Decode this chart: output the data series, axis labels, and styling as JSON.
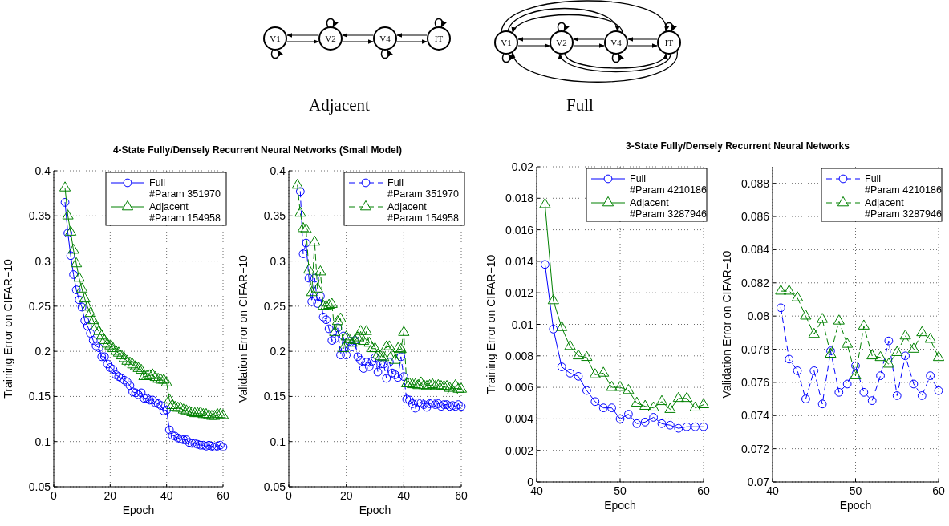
{
  "chart_data": [
    {
      "type": "other",
      "annotations": [
        "V1",
        "V2",
        "V4",
        "IT",
        "Adjacent",
        "V1",
        "V2",
        "V4",
        "IT",
        "Full"
      ]
    },
    {
      "type": "line",
      "title": "4-State Fully/Densely Recurrent Neural Networks (Small Model)",
      "xlabel": "Epoch",
      "ylabel": "Training Error on CIFAR−10",
      "x": [
        4,
        5,
        6,
        7,
        8,
        9,
        10,
        11,
        12,
        13,
        14,
        15,
        16,
        17,
        18,
        19,
        20,
        21,
        22,
        23,
        24,
        25,
        26,
        27,
        28,
        29,
        30,
        31,
        32,
        33,
        34,
        35,
        36,
        37,
        38,
        39,
        40,
        41,
        42,
        43,
        44,
        45,
        46,
        47,
        48,
        49,
        50,
        51,
        52,
        53,
        54,
        55,
        56,
        57,
        58,
        59,
        60
      ],
      "xlim": [
        0,
        60
      ],
      "xticks": [
        0,
        20,
        40,
        60
      ],
      "ylim": [
        0.05,
        0.4
      ],
      "yticks": [
        0.05,
        0.1,
        0.15,
        0.2,
        0.25,
        0.3,
        0.35,
        0.4
      ],
      "grid": true,
      "legend": "top right",
      "line_style": "solid",
      "series": [
        {
          "name": "Full\n#Param 351970",
          "color": "#0000ff",
          "marker": "circle",
          "values": [
            0.365,
            0.331,
            0.306,
            0.285,
            0.268,
            0.257,
            0.249,
            0.234,
            0.228,
            0.22,
            0.212,
            0.206,
            0.204,
            0.194,
            0.194,
            0.186,
            0.182,
            0.18,
            0.174,
            0.172,
            0.17,
            0.168,
            0.166,
            0.162,
            0.155,
            0.154,
            0.152,
            0.154,
            0.148,
            0.148,
            0.146,
            0.146,
            0.143,
            0.142,
            0.14,
            0.134,
            0.135,
            0.113,
            0.107,
            0.106,
            0.104,
            0.103,
            0.102,
            0.102,
            0.099,
            0.098,
            0.098,
            0.097,
            0.096,
            0.096,
            0.095,
            0.096,
            0.095,
            0.094,
            0.095,
            0.096,
            0.094
          ]
        },
        {
          "name": "Adjacent\n#Param 154958",
          "color": "#008000",
          "marker": "triangle",
          "values": [
            0.381,
            0.35,
            0.332,
            0.312,
            0.297,
            0.281,
            0.269,
            0.258,
            0.249,
            0.242,
            0.234,
            0.227,
            0.222,
            0.217,
            0.212,
            0.208,
            0.206,
            0.203,
            0.2,
            0.198,
            0.195,
            0.192,
            0.189,
            0.187,
            0.185,
            0.183,
            0.181,
            0.179,
            0.172,
            0.172,
            0.173,
            0.174,
            0.171,
            0.169,
            0.168,
            0.168,
            0.165,
            0.146,
            0.14,
            0.138,
            0.137,
            0.137,
            0.135,
            0.134,
            0.133,
            0.132,
            0.131,
            0.131,
            0.132,
            0.13,
            0.13,
            0.129,
            0.128,
            0.128,
            0.13,
            0.13,
            0.129
          ]
        }
      ]
    },
    {
      "type": "line",
      "xlabel": "Epoch",
      "ylabel": "Validation Error on CIFAR−10",
      "x": [
        3,
        4,
        5,
        6,
        7,
        8,
        9,
        10,
        11,
        12,
        13,
        14,
        15,
        16,
        17,
        18,
        19,
        20,
        21,
        22,
        23,
        24,
        25,
        26,
        27,
        28,
        29,
        30,
        31,
        32,
        33,
        34,
        35,
        36,
        37,
        38,
        39,
        40,
        41,
        42,
        43,
        44,
        45,
        46,
        47,
        48,
        49,
        50,
        51,
        52,
        53,
        54,
        55,
        56,
        57,
        58,
        59,
        60
      ],
      "xlim": [
        0,
        60
      ],
      "xticks": [
        0,
        20,
        40,
        60
      ],
      "ylim": [
        0.05,
        0.4
      ],
      "yticks": [
        0.05,
        0.1,
        0.15,
        0.2,
        0.25,
        0.3,
        0.35,
        0.4
      ],
      "grid": true,
      "legend": "top right",
      "line_style": "dashed",
      "series": [
        {
          "name": "Full\n#Param 351970",
          "color": "#0000ff",
          "marker": "circle",
          "values": [
            null,
            0.377,
            0.308,
            0.32,
            0.281,
            0.255,
            0.281,
            0.253,
            0.261,
            0.238,
            0.235,
            0.225,
            0.212,
            0.214,
            0.226,
            0.196,
            0.217,
            0.196,
            0.211,
            0.205,
            0.212,
            0.194,
            0.19,
            0.181,
            0.188,
            0.183,
            0.189,
            0.193,
            0.177,
            0.186,
            0.186,
            0.17,
            0.188,
            0.176,
            0.174,
            0.171,
            0.194,
            0.172,
            0.147,
            0.146,
            0.142,
            0.137,
            0.143,
            0.143,
            0.141,
            0.138,
            0.142,
            0.143,
            0.141,
            0.142,
            0.139,
            0.141,
            0.141,
            0.139,
            0.14,
            0.139,
            0.141,
            0.139
          ]
        },
        {
          "name": "Adjacent\n#Param 154958",
          "color": "#008000",
          "marker": "triangle",
          "values": [
            0.384,
            0.353,
            0.336,
            0.335,
            0.29,
            0.265,
            0.321,
            0.269,
            0.288,
            0.25,
            0.25,
            0.251,
            0.252,
            0.221,
            0.233,
            0.236,
            0.203,
            0.216,
            0.213,
            0.209,
            0.212,
            0.215,
            0.222,
            0.211,
            0.222,
            0.209,
            0.203,
            0.203,
            0.196,
            0.194,
            0.193,
            0.205,
            0.205,
            0.196,
            0.19,
            0.203,
            0.202,
            0.221,
            0.164,
            0.164,
            0.163,
            0.163,
            0.162,
            0.165,
            0.162,
            0.161,
            0.162,
            0.163,
            0.161,
            0.162,
            0.161,
            0.161,
            0.161,
            0.159,
            0.156,
            0.162,
            0.158,
            0.158
          ]
        }
      ]
    },
    {
      "type": "line",
      "title": "3-State Fully/Densely Recurrent Neural Networks",
      "xlabel": "Epoch",
      "ylabel": "Training Error on CIFAR−10",
      "x": [
        41,
        42,
        43,
        44,
        45,
        46,
        47,
        48,
        49,
        50,
        51,
        52,
        53,
        54,
        55,
        56,
        57,
        58,
        59,
        60
      ],
      "xlim": [
        40,
        60
      ],
      "xticks": [
        40,
        50,
        60
      ],
      "ylim": [
        0,
        0.02
      ],
      "yticks": [
        0,
        0.002,
        0.004,
        0.006,
        0.008,
        0.01,
        0.012,
        0.014,
        0.016,
        0.018,
        0.02
      ],
      "grid": true,
      "legend": "top right",
      "line_style": "solid",
      "series": [
        {
          "name": "Full\n#Param 4210186",
          "color": "#0000ff",
          "marker": "circle",
          "values": [
            0.0138,
            0.0097,
            0.0073,
            0.0069,
            0.0067,
            0.0058,
            0.0051,
            0.0047,
            0.0047,
            0.004,
            0.0043,
            0.0037,
            0.0038,
            0.0041,
            0.0037,
            0.0036,
            0.0034,
            0.0035,
            0.0035,
            0.0035
          ]
        },
        {
          "name": "Adjacent\n#Param 3287946",
          "color": "#008000",
          "marker": "triangle",
          "values": [
            0.0176,
            0.0115,
            0.0098,
            0.0086,
            0.008,
            0.0079,
            0.0068,
            0.0069,
            0.006,
            0.006,
            0.0058,
            0.005,
            0.0048,
            0.0047,
            0.0051,
            0.0046,
            0.0053,
            0.0053,
            0.0047,
            0.0049
          ]
        }
      ]
    },
    {
      "type": "line",
      "xlabel": "Epoch",
      "ylabel": "Validation Error on CIFAR−10",
      "x": [
        41,
        42,
        43,
        44,
        45,
        46,
        47,
        48,
        49,
        50,
        51,
        52,
        53,
        54,
        55,
        56,
        57,
        58,
        59,
        60
      ],
      "xlim": [
        40,
        60
      ],
      "xticks": [
        40,
        50,
        60
      ],
      "ylim": [
        0.07,
        0.089
      ],
      "yticks": [
        0.07,
        0.072,
        0.074,
        0.076,
        0.078,
        0.08,
        0.082,
        0.084,
        0.086,
        0.088
      ],
      "grid": true,
      "legend": "top right",
      "line_style": "dashed",
      "series": [
        {
          "name": "Full\n#Param 4210186",
          "color": "#0000ff",
          "marker": "circle",
          "values": [
            0.0805,
            0.0774,
            0.0767,
            0.075,
            0.0767,
            0.0747,
            0.0779,
            0.0754,
            0.0759,
            0.077,
            0.0754,
            0.0749,
            0.0764,
            0.0785,
            0.0752,
            0.0776,
            0.0759,
            0.0752,
            0.0764,
            0.0755
          ]
        },
        {
          "name": "Adjacent\n#Param 3287946",
          "color": "#008000",
          "marker": "triangle",
          "values": [
            0.0815,
            0.0815,
            0.0811,
            0.08,
            0.0789,
            0.0798,
            0.0777,
            0.0797,
            0.0783,
            0.0764,
            0.0794,
            0.0776,
            0.0775,
            0.0771,
            0.0778,
            0.0788,
            0.078,
            0.079,
            0.0786,
            0.0775
          ]
        }
      ]
    }
  ]
}
